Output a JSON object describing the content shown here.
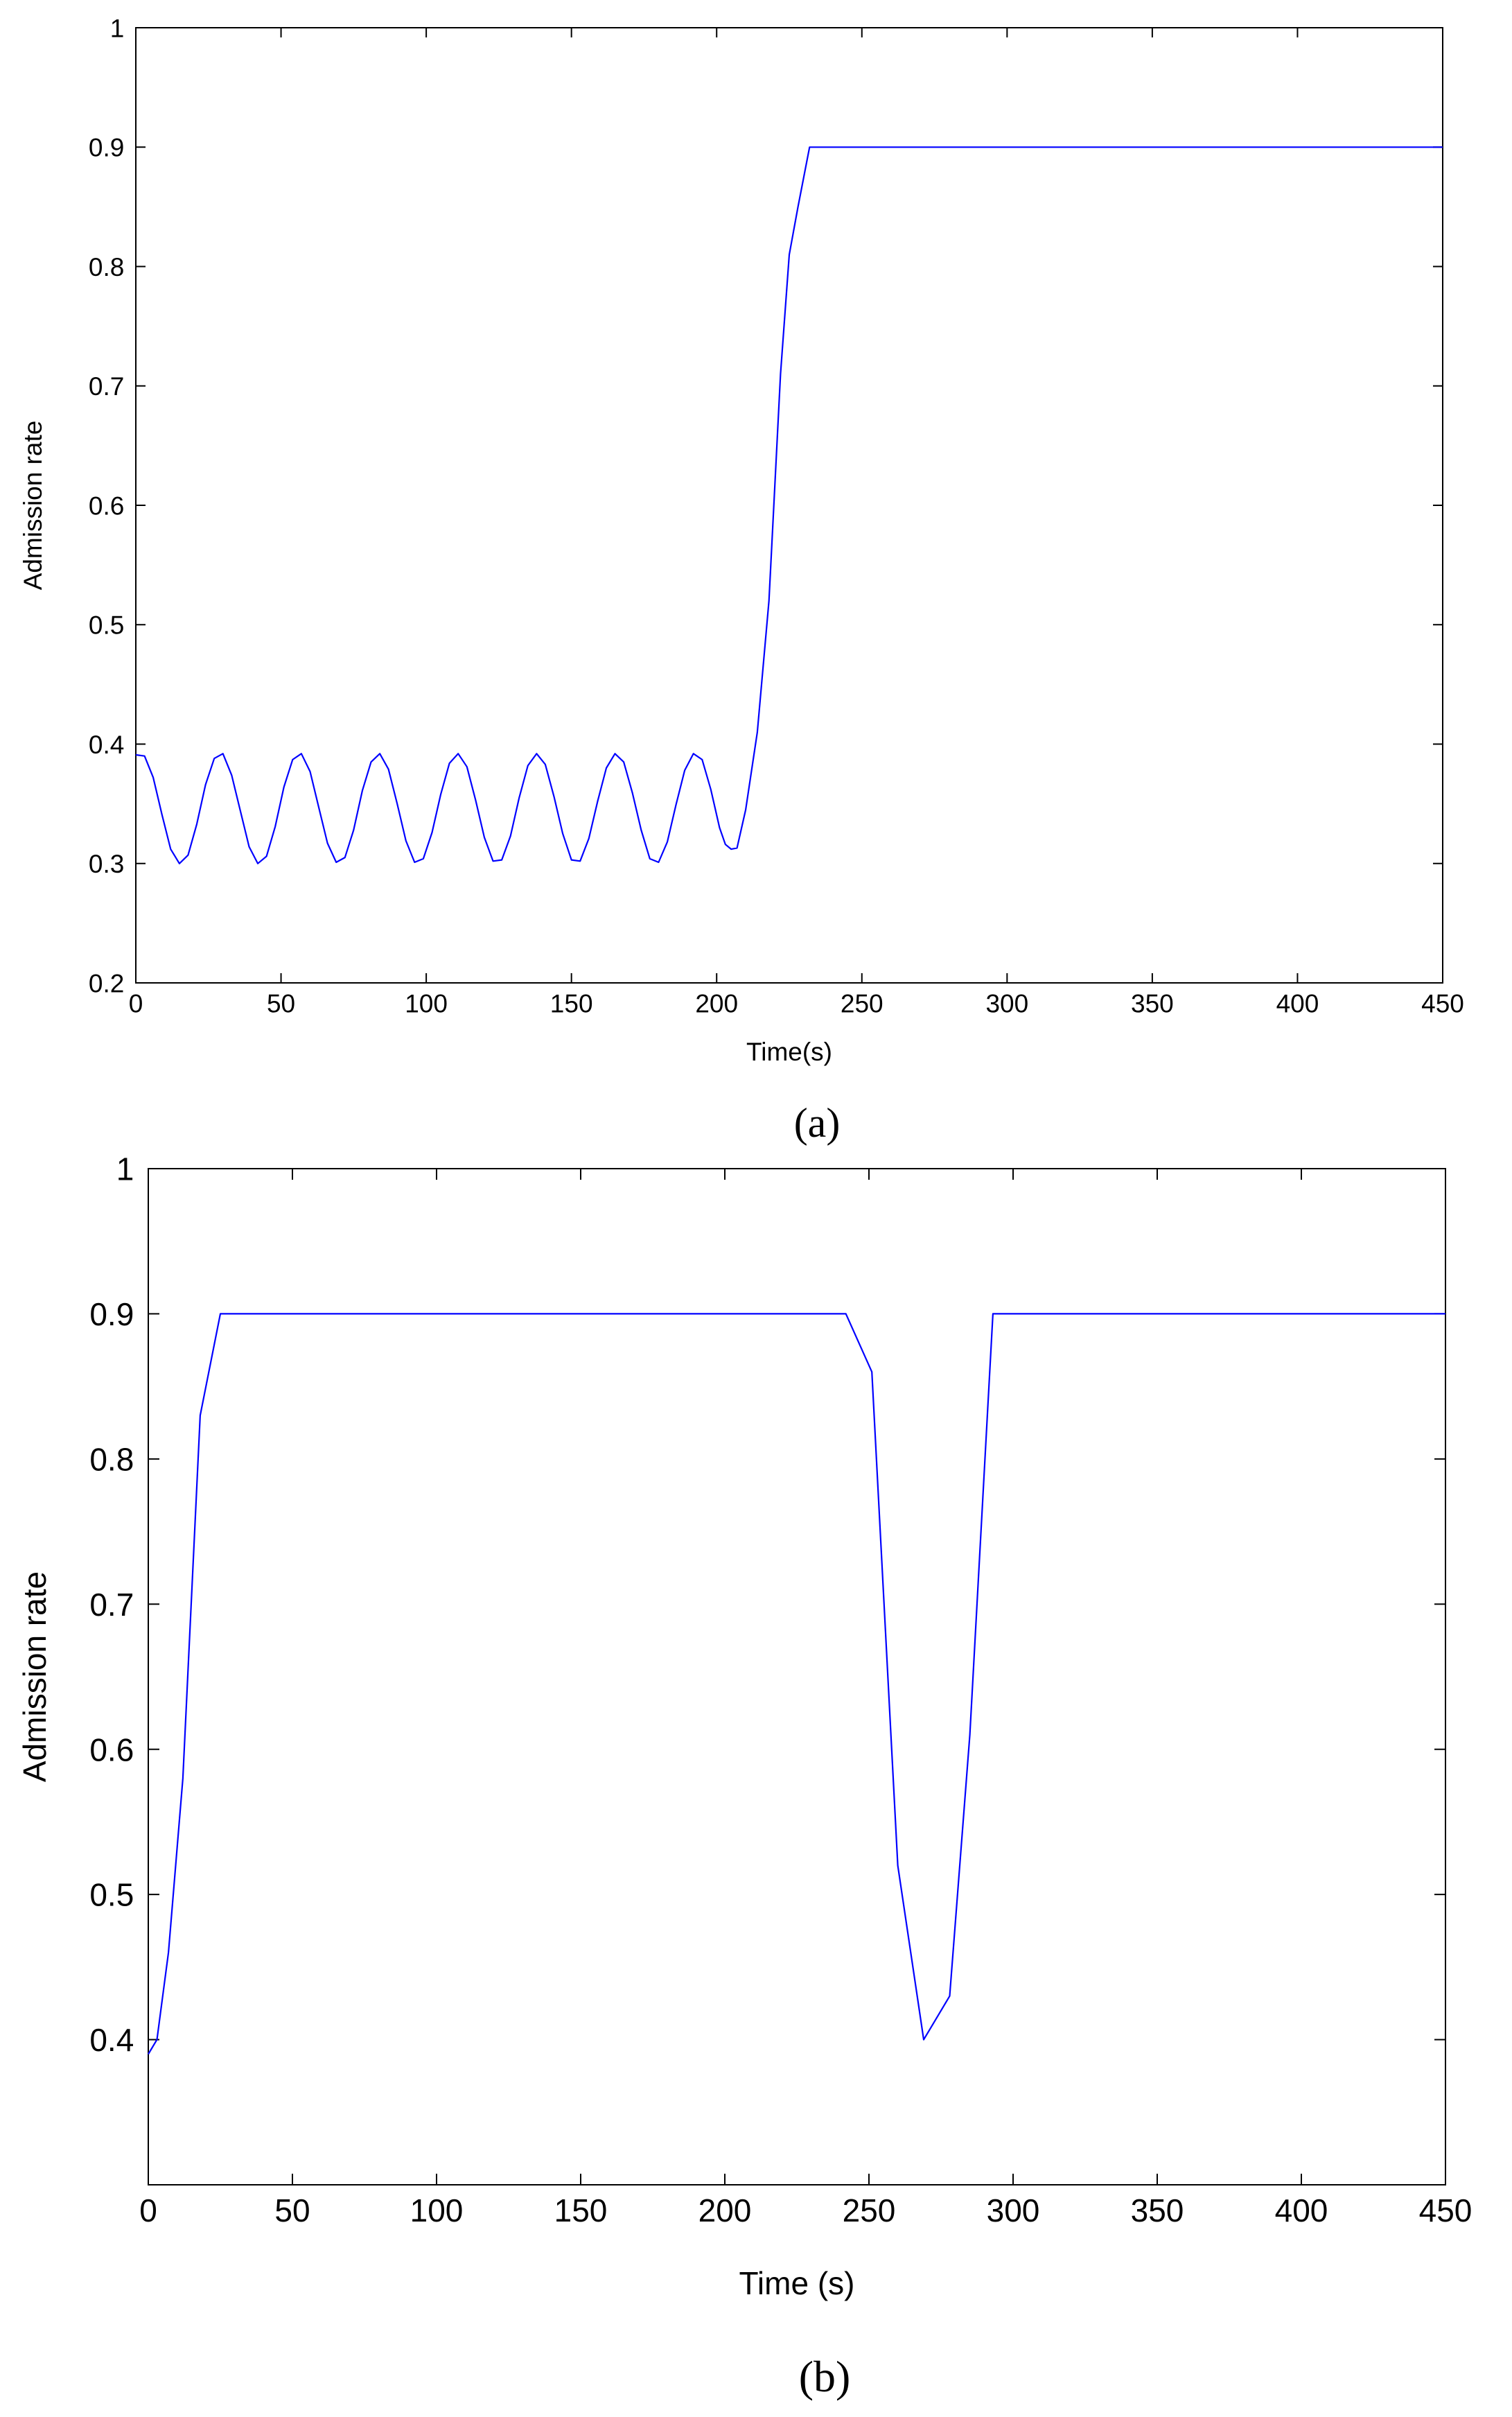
{
  "chart_data": [
    {
      "type": "line",
      "caption": "(a)",
      "xlabel": "Time(s)",
      "ylabel": "Admission rate",
      "xlim": [
        0,
        450
      ],
      "ylim": [
        0.2,
        1
      ],
      "xticks": [
        "0",
        "50",
        "100",
        "150",
        "200",
        "250",
        "300",
        "350",
        "400",
        "450"
      ],
      "yticks": [
        "0.2",
        "0.3",
        "0.4",
        "0.5",
        "0.6",
        "0.7",
        "0.8",
        "0.9",
        "1"
      ],
      "grid": false,
      "line_color": "#0000ff",
      "series": [
        {
          "x": [
            0,
            3,
            6,
            9,
            12,
            15,
            18,
            21,
            24,
            27,
            30,
            33,
            36,
            39,
            42,
            45,
            48,
            51,
            54,
            57,
            60,
            63,
            66,
            69,
            72,
            75,
            78,
            81,
            84,
            87,
            90,
            93,
            96,
            99,
            102,
            105,
            108,
            111,
            114,
            117,
            120,
            123,
            126,
            129,
            132,
            135,
            138,
            141,
            144,
            147,
            150,
            153,
            156,
            159,
            162,
            165,
            168,
            171,
            174,
            177,
            180,
            183,
            186,
            189,
            192,
            195,
            198,
            201,
            203,
            205,
            207,
            210,
            214,
            218,
            222,
            225,
            228,
            232,
            450
          ],
          "y": [
            0.391,
            0.39,
            0.372,
            0.341,
            0.312,
            0.3,
            0.307,
            0.333,
            0.366,
            0.388,
            0.392,
            0.374,
            0.344,
            0.314,
            0.3,
            0.306,
            0.331,
            0.364,
            0.387,
            0.392,
            0.377,
            0.347,
            0.317,
            0.301,
            0.305,
            0.328,
            0.361,
            0.385,
            0.392,
            0.379,
            0.35,
            0.319,
            0.301,
            0.304,
            0.326,
            0.358,
            0.384,
            0.392,
            0.381,
            0.353,
            0.322,
            0.302,
            0.303,
            0.323,
            0.355,
            0.382,
            0.392,
            0.383,
            0.356,
            0.325,
            0.303,
            0.302,
            0.321,
            0.352,
            0.38,
            0.392,
            0.385,
            0.359,
            0.328,
            0.304,
            0.301,
            0.318,
            0.349,
            0.378,
            0.392,
            0.387,
            0.362,
            0.33,
            0.316,
            0.312,
            0.313,
            0.345,
            0.41,
            0.52,
            0.71,
            0.81,
            0.85,
            0.9,
            0.9
          ]
        }
      ]
    },
    {
      "type": "line",
      "caption": "(b)",
      "xlabel": "Time (s)",
      "ylabel": "Admission rate",
      "xlim": [
        0,
        450
      ],
      "ylim": [
        0.3,
        1
      ],
      "xticks": [
        "0",
        "50",
        "100",
        "150",
        "200",
        "250",
        "300",
        "350",
        "400",
        "450"
      ],
      "yticks": [
        "0.4",
        "0.5",
        "0.6",
        "0.7",
        "0.8",
        "0.9",
        "1"
      ],
      "ytick_values": [
        0.4,
        0.5,
        0.6,
        0.7,
        0.8,
        0.9,
        1
      ],
      "grid": false,
      "line_color": "#0000ff",
      "series": [
        {
          "x": [
            0,
            3,
            7,
            12,
            18,
            25,
            30,
            242,
            251,
            260,
            269,
            278,
            285,
            293,
            450
          ],
          "y": [
            0.39,
            0.4,
            0.46,
            0.58,
            0.83,
            0.9,
            0.9,
            0.9,
            0.86,
            0.52,
            0.4,
            0.43,
            0.61,
            0.9,
            0.9
          ]
        }
      ]
    }
  ]
}
